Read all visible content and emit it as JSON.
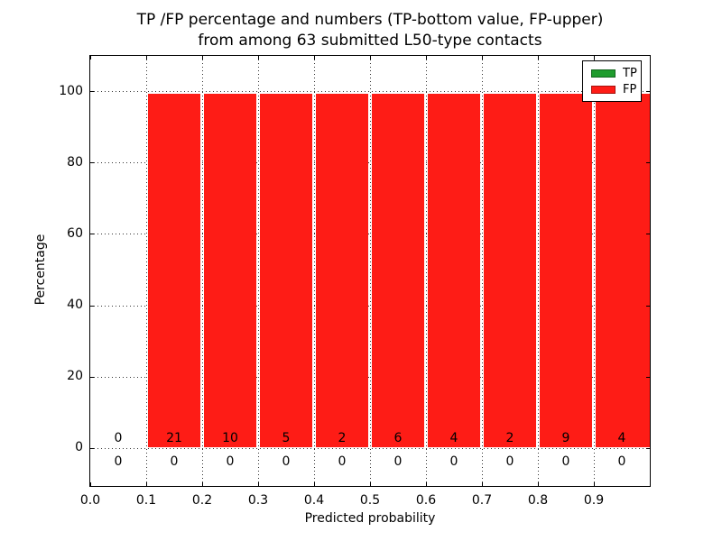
{
  "figure": {
    "background": "#ffffff",
    "title_line1": "TP /FP percentage and numbers (TP-bottom value, FP-upper)",
    "title_line2": "from among 63 submitted L50-type contacts"
  },
  "axes": {
    "xlabel": "Predicted probability",
    "ylabel": "Percentage",
    "x_tick_labels": [
      "0.0",
      "0.1",
      "0.2",
      "0.3",
      "0.4",
      "0.5",
      "0.6",
      "0.7",
      "0.8",
      "0.9"
    ],
    "y_tick_labels": [
      "0",
      "20",
      "40",
      "60",
      "80",
      "100"
    ],
    "frame_color": "#000000",
    "grid_color": "#333333"
  },
  "legend": {
    "position": "upper right",
    "items": [
      {
        "label": "TP",
        "color": "#1f9c2e"
      },
      {
        "label": "FP",
        "color": "#fe1c16"
      }
    ]
  },
  "chart_data": {
    "type": "bar",
    "subtype": "stacked",
    "title": "TP /FP percentage and numbers (TP-bottom value, FP-upper) from among 63 submitted L50-type contacts",
    "xlabel": "Predicted probability",
    "ylabel": "Percentage",
    "xlim": [
      0.0,
      1.0
    ],
    "ylim": [
      -10.5,
      110
    ],
    "x_ticks": [
      0.0,
      0.1,
      0.2,
      0.3,
      0.4,
      0.5,
      0.6,
      0.7,
      0.8,
      0.9
    ],
    "y_ticks": [
      0,
      20,
      40,
      60,
      80,
      100
    ],
    "grid": true,
    "bin_starts": [
      0.0,
      0.1,
      0.2,
      0.3,
      0.4,
      0.5,
      0.6,
      0.7,
      0.8,
      0.9
    ],
    "bin_width": 0.1,
    "series": [
      {
        "name": "TP",
        "color": "#1f9c2e",
        "counts": [
          0,
          0,
          0,
          0,
          0,
          0,
          0,
          0,
          0,
          0
        ],
        "heights_pct": [
          0,
          0,
          0,
          0,
          0,
          0,
          0,
          0,
          0,
          0
        ],
        "count_label_row": "below_zero_line"
      },
      {
        "name": "FP",
        "color": "#fe1c16",
        "counts": [
          0,
          21,
          10,
          5,
          2,
          6,
          4,
          2,
          9,
          4
        ],
        "heights_pct": [
          0,
          100,
          100,
          100,
          100,
          100,
          100,
          100,
          100,
          100
        ],
        "count_label_row": "above_zero_line"
      }
    ]
  }
}
